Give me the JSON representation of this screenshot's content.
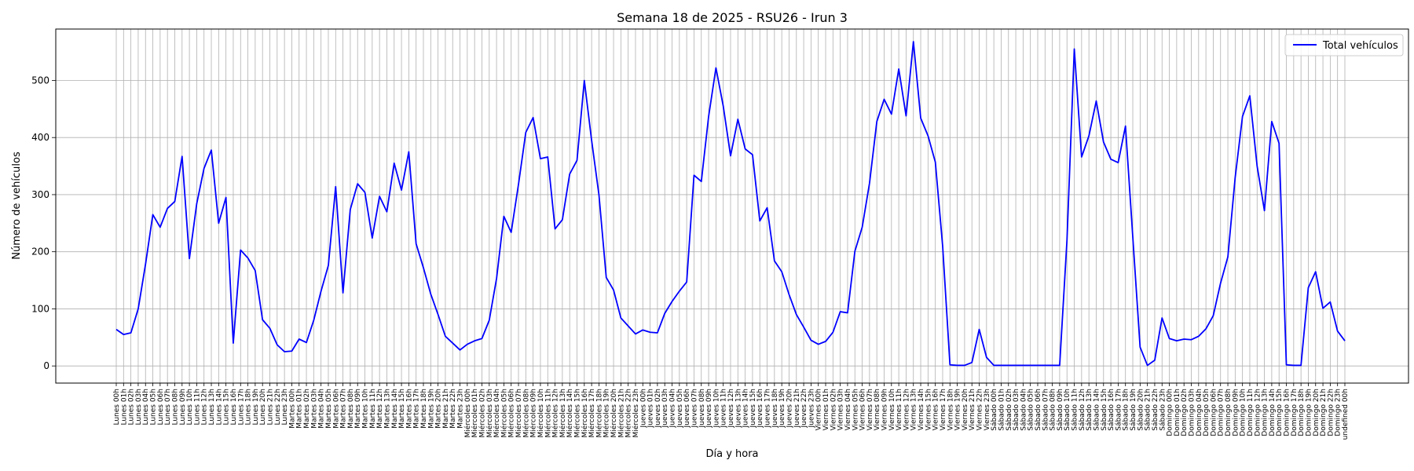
{
  "chart_data": {
    "type": "line",
    "title": "Semana 18 de 2025 - RSU26 - Irun 3",
    "xlabel": "Día y hora",
    "ylabel": "Número de vehículos",
    "ylim": [
      -30,
      590
    ],
    "yticks": [
      0,
      100,
      200,
      300,
      400,
      500
    ],
    "grid": true,
    "legend_position": "top-right",
    "days": [
      "Lunes",
      "Martes",
      "Miércoles",
      "Jueves",
      "Viernes",
      "Sábado",
      "Domingo"
    ],
    "series": [
      {
        "name": "Total vehículos",
        "color": "#0000ff",
        "values": [
          64,
          55,
          58,
          100,
          178,
          265,
          243,
          276,
          288,
          367,
          188,
          284,
          346,
          378,
          250,
          295,
          40,
          203,
          189,
          167,
          81,
          66,
          37,
          25,
          26,
          47,
          41,
          80,
          131,
          176,
          314,
          128,
          274,
          319,
          304,
          224,
          297,
          270,
          355,
          308,
          375,
          214,
          172,
          126,
          90,
          52,
          40,
          28,
          38,
          44,
          48,
          80,
          153,
          262,
          234,
          318,
          409,
          435,
          363,
          366,
          240,
          256,
          336,
          360,
          500,
          395,
          300,
          155,
          133,
          84,
          70,
          56,
          63,
          59,
          58,
          92,
          113,
          131,
          147,
          334,
          323,
          437,
          522,
          455,
          368,
          432,
          380,
          370,
          254,
          277,
          184,
          165,
          125,
          90,
          68,
          45,
          38,
          43,
          59,
          95,
          93,
          201,
          243,
          320,
          428,
          467,
          441,
          520,
          438,
          568,
          434,
          403,
          357,
          210,
          2,
          1,
          1,
          6,
          64,
          15,
          1,
          1,
          1,
          1,
          1,
          1,
          1,
          1,
          1,
          1,
          220,
          555,
          366,
          403,
          464,
          392,
          362,
          356,
          420,
          226,
          33,
          1,
          10,
          84,
          48,
          44,
          47,
          46,
          52,
          65,
          88,
          145,
          191,
          330,
          437,
          473,
          350,
          272,
          428,
          390,
          2,
          1,
          1,
          137,
          165,
          101,
          112,
          61,
          44
        ]
      }
    ]
  }
}
